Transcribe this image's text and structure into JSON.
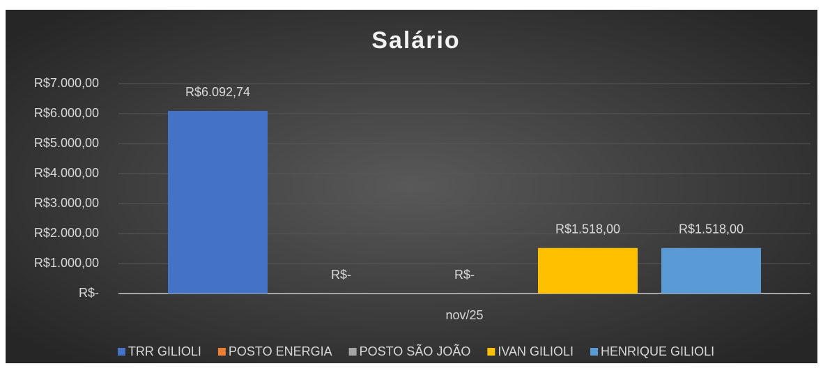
{
  "chart_data": {
    "type": "bar",
    "title": "Salário",
    "categories": [
      "nov/25"
    ],
    "series": [
      {
        "name": "TRR GILIOLI",
        "color": "#4472c4",
        "values": [
          6092.74
        ],
        "value_labels": [
          "R$6.092,74"
        ]
      },
      {
        "name": "POSTO ENERGIA",
        "color": "#ed7d31",
        "values": [
          0
        ],
        "value_labels": [
          "R$-"
        ]
      },
      {
        "name": "POSTO SÃO JOÃO",
        "color": "#a5a5a5",
        "values": [
          0
        ],
        "value_labels": [
          "R$-"
        ]
      },
      {
        "name": "IVAN GILIOLI",
        "color": "#ffc000",
        "values": [
          1518
        ],
        "value_labels": [
          "R$1.518,00"
        ]
      },
      {
        "name": "HENRIQUE GILIOLI",
        "color": "#5b9bd5",
        "values": [
          1518
        ],
        "value_labels": [
          "R$1.518,00"
        ]
      }
    ],
    "ylim": [
      0,
      7000
    ],
    "yticks": [
      {
        "value": 0,
        "label": "R$-"
      },
      {
        "value": 1000,
        "label": "R$1.000,00"
      },
      {
        "value": 2000,
        "label": "R$2.000,00"
      },
      {
        "value": 3000,
        "label": "R$3.000,00"
      },
      {
        "value": 4000,
        "label": "R$4.000,00"
      },
      {
        "value": 5000,
        "label": "R$5.000,00"
      },
      {
        "value": 6000,
        "label": "R$6.000,00"
      },
      {
        "value": 7000,
        "label": "R$7.000,00"
      }
    ],
    "grid": true,
    "legend": "bottom"
  }
}
